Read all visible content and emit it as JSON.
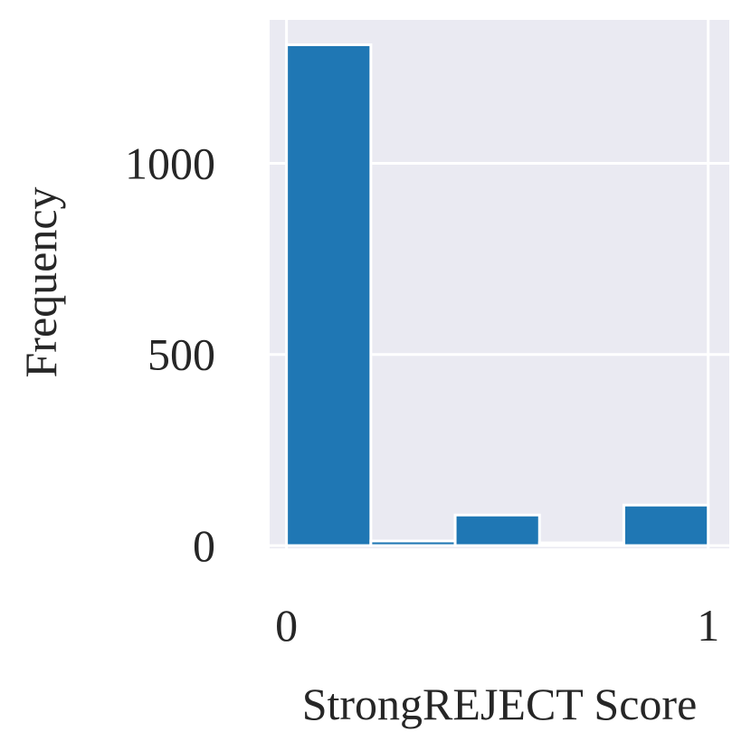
{
  "chart_data": {
    "type": "histogram",
    "xlabel": "StrongREJECT Score",
    "ylabel": "Frequency",
    "bins": [
      0,
      0.2,
      0.4,
      0.6,
      0.8,
      1
    ],
    "values": [
      1310,
      12,
      80,
      7,
      106
    ],
    "color": "#1f77b4",
    "xlim": [
      -0.04,
      1.05
    ],
    "ylim": [
      0,
      1375
    ],
    "xticks": [
      0,
      1
    ],
    "yticks": [
      0,
      500,
      1000
    ],
    "grid": true
  }
}
